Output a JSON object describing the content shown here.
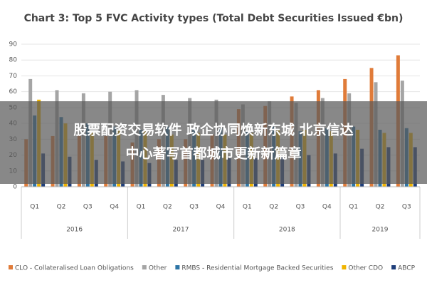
{
  "chart_data": {
    "type": "bar",
    "title": "Chart 3: Top 5 FVC Activity types (Total Debt Securities Issued €bn)",
    "categories": [
      "Q1",
      "Q2",
      "Q3",
      "Q4",
      "Q1",
      "Q2",
      "Q3",
      "Q4",
      "Q1",
      "Q2",
      "Q3",
      "Q4",
      "Q1",
      "Q2",
      "Q3"
    ],
    "category_groups": [
      "2016",
      "2017",
      "2018",
      "2019"
    ],
    "series": [
      {
        "name": "CLO - Collateralised Loan Obligations",
        "color": "#e07b39",
        "values": [
          30,
          32,
          32,
          32,
          28,
          30,
          30,
          33,
          49,
          51,
          57,
          61,
          68,
          75,
          83
        ]
      },
      {
        "name": "Other",
        "color": "#a5a5a5",
        "values": [
          68,
          61,
          59,
          60,
          61,
          58,
          56,
          55,
          52,
          54,
          53,
          56,
          59,
          66,
          67
        ]
      },
      {
        "name": "RMBS - Residential Mortgage Backed Securities",
        "color": "#2e75a6",
        "values": [
          45,
          44,
          40,
          38,
          36,
          38,
          37,
          37,
          35,
          38,
          35,
          37,
          38,
          36,
          37
        ]
      },
      {
        "name": "Other CDO",
        "color": "#f0b400",
        "values": [
          55,
          40,
          35,
          36,
          35,
          33,
          34,
          33,
          34,
          36,
          36,
          35,
          36,
          34,
          34
        ]
      },
      {
        "name": "ABCP",
        "color": "#1f3e7a",
        "values": [
          21,
          19,
          17,
          16,
          15,
          17,
          17,
          18,
          18,
          19,
          20,
          21,
          24,
          25,
          25
        ]
      }
    ],
    "ylim": [
      0,
      90
    ],
    "yticks": [
      0,
      10,
      20,
      30,
      40,
      50,
      60,
      70,
      80,
      90
    ],
    "grid": true
  },
  "banner": {
    "lines": [
      "股票配资交易软件 政企协同焕新东城  北京信达",
      "中心著写首都城市更新新篇章"
    ]
  }
}
